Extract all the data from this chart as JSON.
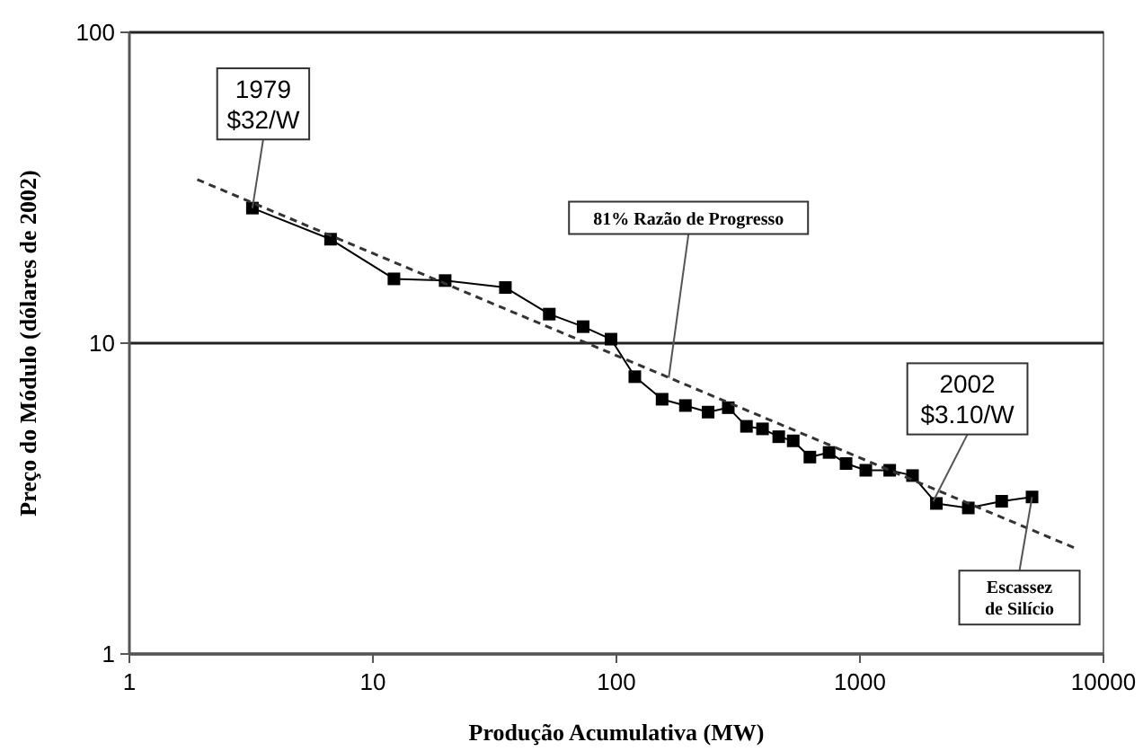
{
  "chart_data": {
    "type": "line",
    "xlabel": "Produção Acumulativa (MW)",
    "ylabel": "Preço do Módulo (dólares de 2002)",
    "log": "xy",
    "xlim": [
      1,
      10000
    ],
    "xticks": [
      1,
      10,
      100,
      1000,
      10000
    ],
    "ylim": [
      1,
      100
    ],
    "yticks": [
      1,
      10,
      100
    ],
    "grid": "y",
    "series": [
      {
        "color": "#000000",
        "marker": "square",
        "line_style": "solid",
        "x": [
          3.2,
          6.7,
          12.2,
          19.8,
          35,
          53,
          73,
          95,
          119,
          154,
          192,
          238,
          288,
          342,
          398,
          464,
          532,
          623,
          747,
          877,
          1057,
          1325,
          1644,
          2060,
          2786,
          3820,
          5090
        ],
        "values": [
          27.2,
          21.6,
          16.1,
          15.9,
          15.1,
          12.4,
          11.3,
          10.3,
          7.8,
          6.6,
          6.3,
          6.0,
          6.2,
          5.4,
          5.3,
          5.0,
          4.85,
          4.3,
          4.45,
          4.1,
          3.9,
          3.9,
          3.75,
          3.05,
          2.95,
          3.1,
          3.2
        ]
      },
      {
        "color": "#333333",
        "marker": "none",
        "line_style": "dashed",
        "x": [
          1.9,
          7650
        ],
        "values": [
          33.6,
          2.19
        ]
      }
    ],
    "annotations": [
      {
        "text": "1979\n$32/W",
        "x": 3.2,
        "y": 27.2
      },
      {
        "text": "81% Razão de Progresso",
        "x": 164,
        "y": 7.74
      },
      {
        "text": "2002\n$3.10/W",
        "x": 2000,
        "y": 3.1
      },
      {
        "text": "Escassez\nde Silício",
        "x": 5090,
        "y": 3.2
      }
    ]
  }
}
